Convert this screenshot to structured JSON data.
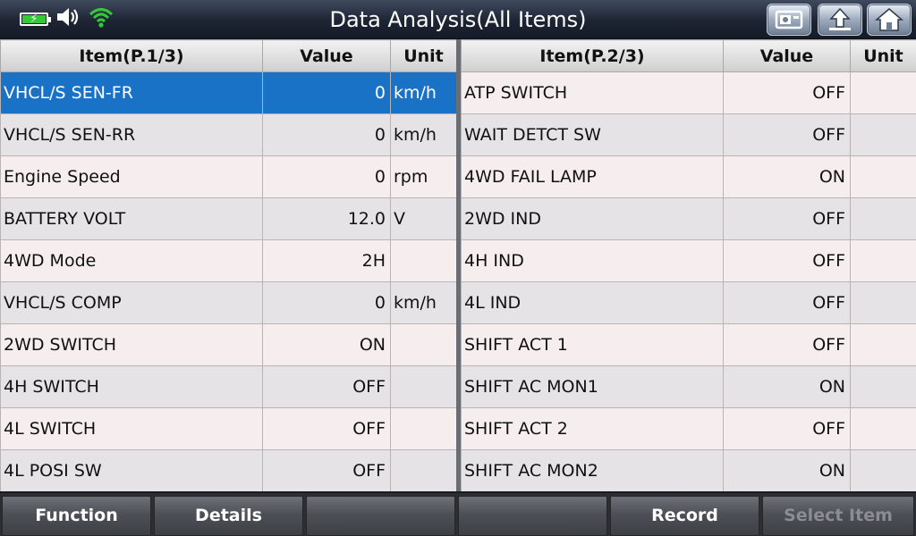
{
  "title": "Data Analysis(All Items)",
  "status": {
    "icons": [
      "battery-charging-icon",
      "speaker-icon",
      "wifi-icon"
    ],
    "battery_color": "#35c93a",
    "wifi_color": "#35c93a"
  },
  "toolbar": {
    "icons": [
      "screenshot-icon",
      "back-icon",
      "home-icon"
    ]
  },
  "selection_color": "#1a72c7",
  "left_table": {
    "headers": {
      "item": "Item(P.1/3)",
      "value": "Value",
      "unit": "Unit"
    },
    "rows": [
      {
        "item": "VHCL/S SEN-FR",
        "value": "0",
        "unit": "km/h"
      },
      {
        "item": "VHCL/S SEN-RR",
        "value": "0",
        "unit": "km/h"
      },
      {
        "item": "Engine Speed",
        "value": "0",
        "unit": "rpm"
      },
      {
        "item": "BATTERY VOLT",
        "value": "12.0",
        "unit": "V"
      },
      {
        "item": "4WD Mode",
        "value": "2H",
        "unit": ""
      },
      {
        "item": "VHCL/S COMP",
        "value": "0",
        "unit": "km/h"
      },
      {
        "item": "2WD SWITCH",
        "value": "ON",
        "unit": ""
      },
      {
        "item": "4H SWITCH",
        "value": "OFF",
        "unit": ""
      },
      {
        "item": "4L SWITCH",
        "value": "OFF",
        "unit": ""
      },
      {
        "item": "4L POSI SW",
        "value": "OFF",
        "unit": ""
      }
    ]
  },
  "right_table": {
    "headers": {
      "item": "Item(P.2/3)",
      "value": "Value",
      "unit": "Unit"
    },
    "rows": [
      {
        "item": "ATP SWITCH",
        "value": "OFF",
        "unit": ""
      },
      {
        "item": "WAIT DETCT SW",
        "value": "OFF",
        "unit": ""
      },
      {
        "item": "4WD FAIL LAMP",
        "value": "ON",
        "unit": ""
      },
      {
        "item": "2WD IND",
        "value": "OFF",
        "unit": ""
      },
      {
        "item": "4H IND",
        "value": "OFF",
        "unit": ""
      },
      {
        "item": "4L IND",
        "value": "OFF",
        "unit": ""
      },
      {
        "item": "SHIFT ACT 1",
        "value": "OFF",
        "unit": ""
      },
      {
        "item": "SHIFT AC MON1",
        "value": "ON",
        "unit": ""
      },
      {
        "item": "SHIFT ACT 2",
        "value": "OFF",
        "unit": ""
      },
      {
        "item": "SHIFT AC MON2",
        "value": "ON",
        "unit": ""
      }
    ]
  },
  "bottom": {
    "function_label": "Function",
    "details_label": "Details",
    "empty1_label": "",
    "empty2_label": "",
    "record_label": "Record",
    "select_item_label": "Select Item"
  }
}
